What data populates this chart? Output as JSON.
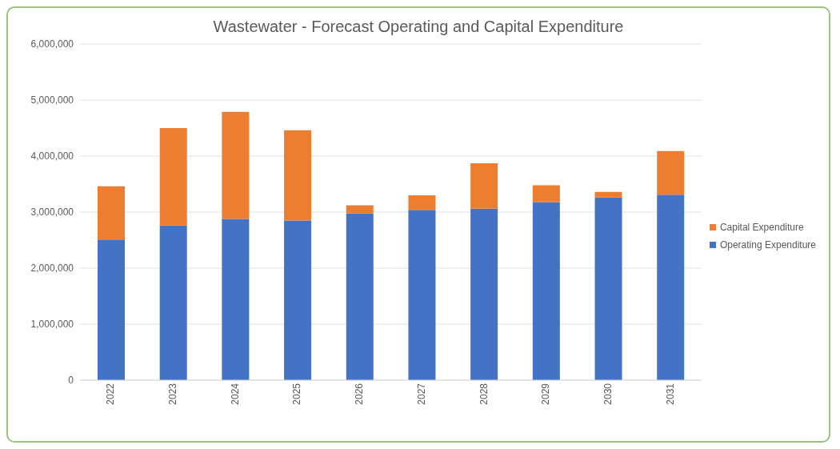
{
  "chart_data": {
    "type": "bar",
    "title": "Wastewater - Forecast Operating and Capital Expenditure",
    "categories": [
      "2022",
      "2023",
      "2024",
      "2025",
      "2026",
      "2027",
      "2028",
      "2029",
      "2030",
      "2031"
    ],
    "stacked": true,
    "series": [
      {
        "name": "Operating Expenditure",
        "color": "#4472c4",
        "values": [
          2510000,
          2760000,
          2880000,
          2850000,
          2980000,
          3040000,
          3060000,
          3180000,
          3260000,
          3310000
        ]
      },
      {
        "name": "Capital Expenditure",
        "color": "#ed7d31",
        "values": [
          950000,
          1740000,
          1910000,
          1610000,
          140000,
          260000,
          810000,
          300000,
          100000,
          780000
        ]
      }
    ],
    "ylim": [
      0,
      6000000
    ],
    "yticks": [
      0,
      {
        "value": 1000000,
        "label": "1,000,000"
      },
      {
        "value": 2000000,
        "label": "2,000,000"
      },
      {
        "value": 3000000,
        "label": "3,000,000"
      },
      {
        "value": 4000000,
        "label": "4,000,000"
      },
      {
        "value": 5000000,
        "label": "5,000,000"
      },
      {
        "value": 6000000,
        "label": "6,000,000"
      }
    ],
    "grid": "y",
    "legend": "right"
  }
}
